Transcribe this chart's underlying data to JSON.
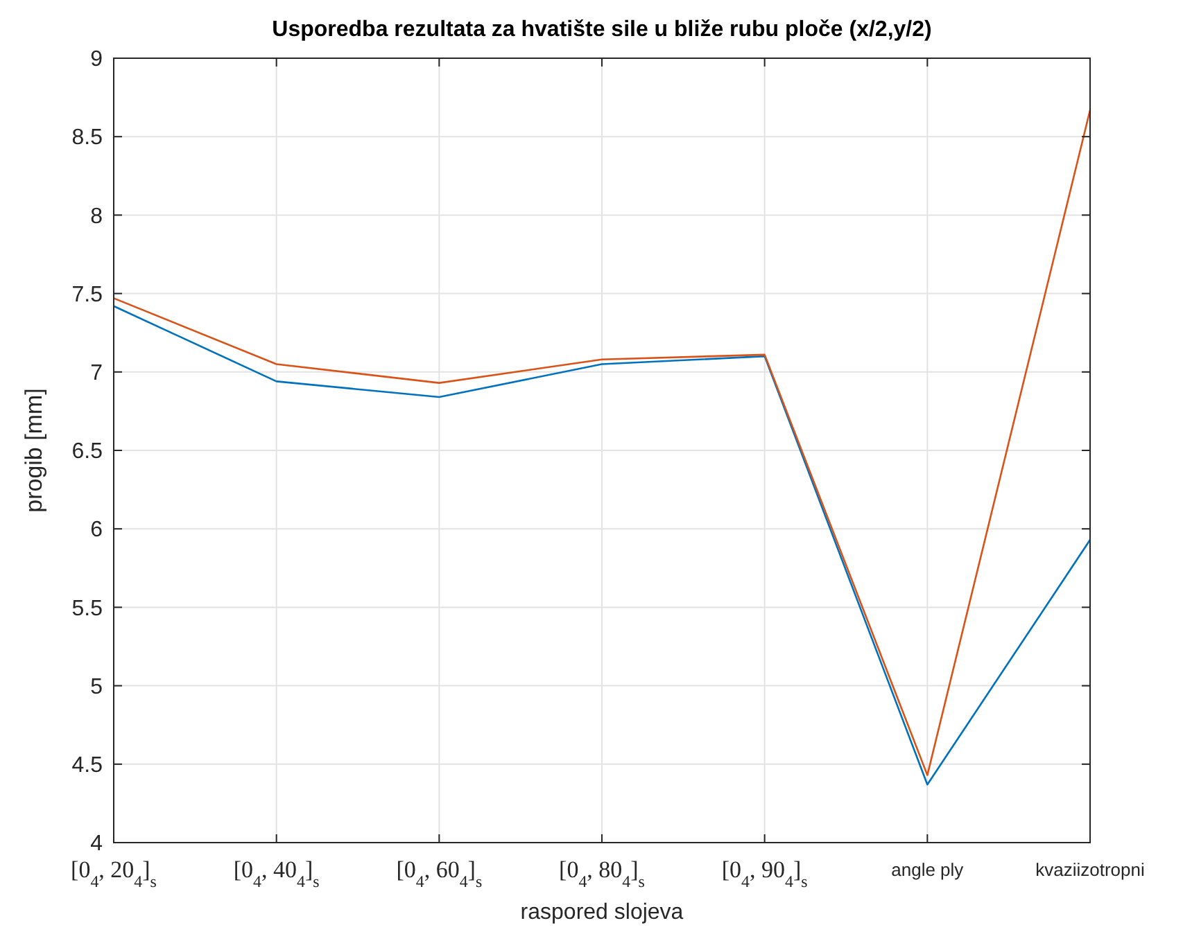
{
  "chart_data": {
    "type": "line",
    "title": "Usporedba rezultata za hvatište sile u bliže rubu ploče (x/2,y/2)",
    "xlabel": "raspored slojeva",
    "ylabel": "progib [mm]",
    "categories": [
      "[0$_{4}$, 20$_{4}$]$_{s}$",
      "[0$_{4}$, 40$_{4}$]$_{s}$",
      "[0$_{4}$, 60$_{4}$]$_{s}$",
      "[0$_{4}$, 80$_{4}$]$_{s}$",
      "[0$_{4}$, 90$_{4}$]$_{s}$",
      "angle ply",
      "kvaziizotropni"
    ],
    "series": [
      {
        "color": "#0072bd",
        "values": [
          7.42,
          6.94,
          6.84,
          7.05,
          7.1,
          4.37,
          5.93
        ]
      },
      {
        "color": "#d95319",
        "values": [
          7.47,
          7.05,
          6.93,
          7.08,
          7.11,
          4.43,
          8.67
        ]
      }
    ],
    "ylim": [
      4,
      9
    ],
    "yticks": [
      4,
      4.5,
      5,
      5.5,
      6,
      6.5,
      7,
      7.5,
      8,
      8.5,
      9
    ],
    "grid": true,
    "line_style": "solid"
  }
}
